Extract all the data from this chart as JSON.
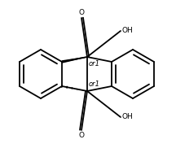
{
  "bg_color": "#ffffff",
  "line_color": "#000000",
  "lw": 1.3,
  "fig_width": 2.16,
  "fig_height": 1.82,
  "dpi": 100,
  "or1_label": "or1",
  "or2_label": "or1",
  "oh1_label": "OH",
  "oh2_label": "OH",
  "o1_label": "O",
  "o2_label": "O",
  "fontsize_small": 6.0,
  "fontsize_label": 6.5
}
